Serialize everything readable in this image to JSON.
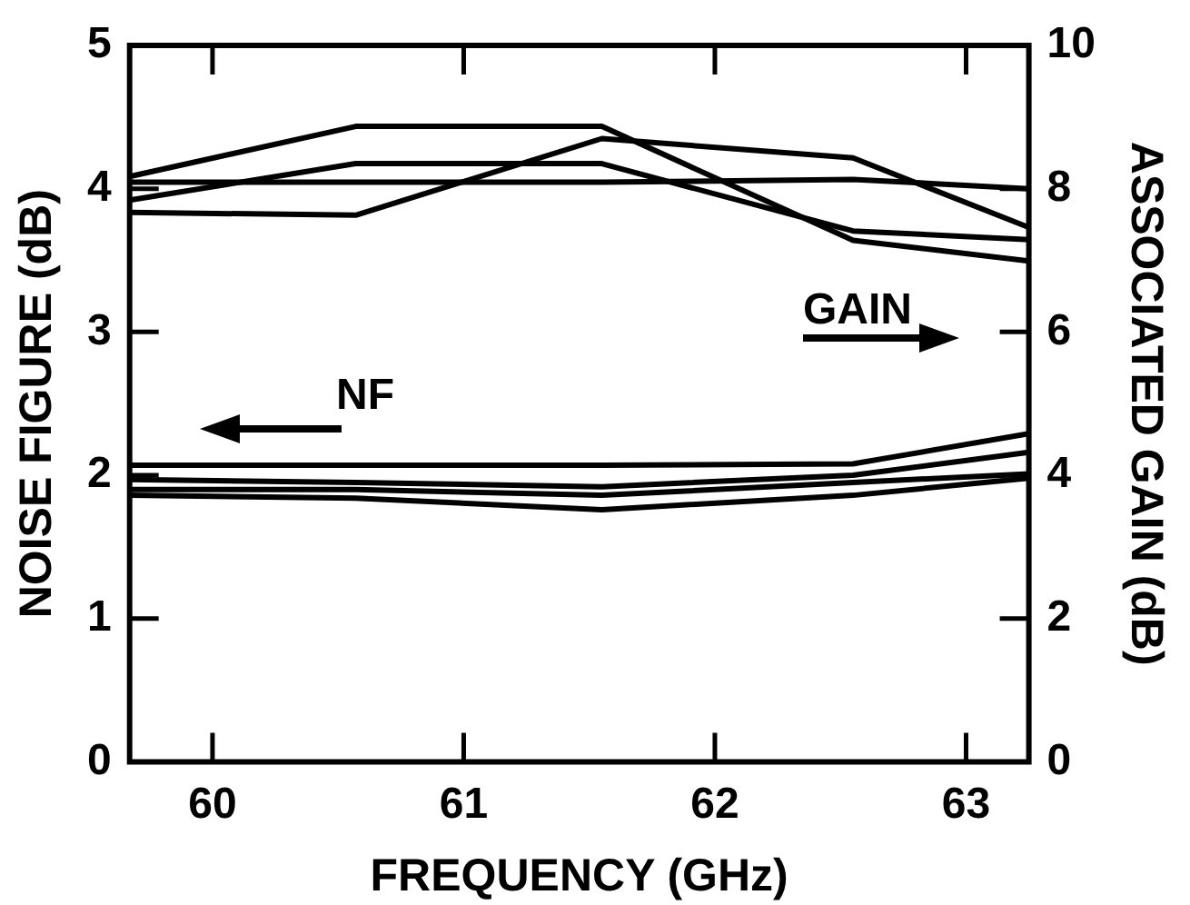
{
  "chart_data": {
    "type": "line",
    "xlabel": "FREQUENCY (GHz)",
    "ylabel": "NOISE FIGURE (dB)",
    "y2label": "ASSOCIATED GAIN (dB)",
    "x": [
      59.67,
      60.57,
      61.55,
      62.55,
      63.25
    ],
    "series": [
      {
        "color": "#000000",
        "values": [
          2.07,
          2.07,
          2.07,
          2.08,
          2.29
        ]
      },
      {
        "color": "#000000",
        "values": [
          1.97,
          1.95,
          1.92,
          2.0,
          2.16
        ]
      },
      {
        "color": "#000000",
        "values": [
          1.9,
          1.9,
          1.86,
          1.95,
          2.01
        ]
      },
      {
        "color": "#000000",
        "values": [
          1.86,
          1.84,
          1.76,
          1.86,
          1.98
        ]
      },
      {
        "color": "#000000",
        "axis": "y2",
        "values": [
          8.17,
          8.87,
          8.87,
          7.28,
          6.99
        ]
      },
      {
        "color": "#000000",
        "axis": "y2",
        "values": [
          7.67,
          7.63,
          8.7,
          8.43,
          7.46
        ]
      },
      {
        "color": "#000000",
        "axis": "y2",
        "values": [
          7.84,
          8.35,
          8.35,
          7.41,
          7.29
        ]
      },
      {
        "color": "#000000",
        "axis": "y2",
        "values": [
          8.09,
          8.09,
          8.09,
          8.13,
          8.0
        ]
      }
    ],
    "xlim": [
      59.67,
      63.25
    ],
    "xticks": [
      60,
      61,
      62,
      63
    ],
    "ylim": [
      0,
      5
    ],
    "yticks": [
      0,
      1,
      2,
      3,
      4,
      5
    ],
    "y2lim": [
      0,
      10
    ],
    "y2ticks": [
      0,
      2,
      4,
      6,
      8,
      10
    ],
    "marker": "none",
    "annotations": [
      "NF",
      "GAIN"
    ]
  }
}
